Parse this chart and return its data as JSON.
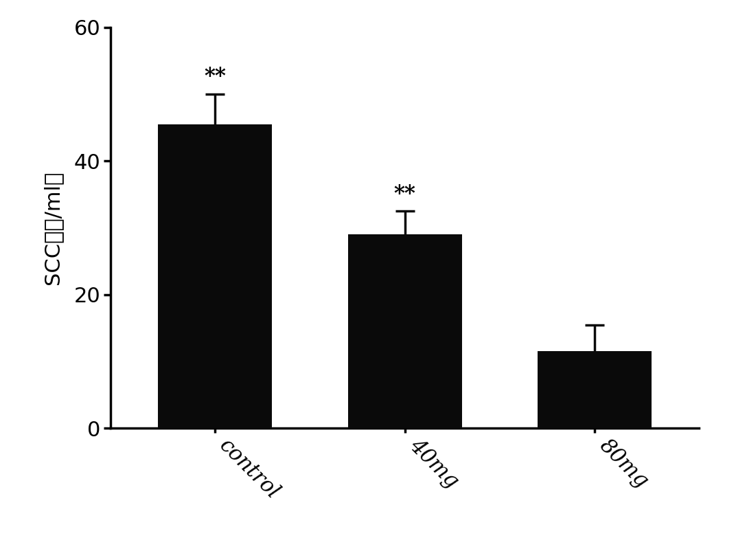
{
  "categories": [
    "control",
    "40mg",
    "80mg"
  ],
  "values": [
    45.5,
    29.0,
    11.5
  ],
  "errors": [
    4.5,
    3.5,
    4.0
  ],
  "bar_color": "#0a0a0a",
  "ylabel": "SCC（万/ml）",
  "ylim": [
    0,
    60
  ],
  "yticks": [
    0,
    20,
    40,
    60
  ],
  "significance": [
    "**",
    "**",
    ""
  ],
  "bar_width": 0.6,
  "figsize": [
    10.72,
    7.99
  ],
  "dpi": 100,
  "xlabel_fontsize": 22,
  "ylabel_fontsize": 22,
  "tick_fontsize": 22,
  "sig_fontsize": 22,
  "background_color": "#ffffff",
  "spine_linewidth": 2.5,
  "tick_linewidth": 2.5,
  "error_linewidth": 2.5,
  "capsize": 10,
  "xtick_rotation": -45,
  "xlim_left": -0.55,
  "xlim_right": 2.55
}
